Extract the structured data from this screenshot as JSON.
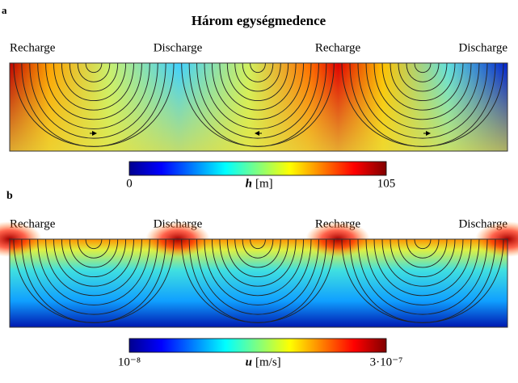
{
  "title": "Három egységmedence",
  "panels": [
    {
      "label": "a",
      "zones": [
        "Recharge",
        "Discharge",
        "Recharge",
        "Discharge"
      ],
      "colorbar": {
        "min": "0",
        "max": "105",
        "symbol": "h",
        "unit": "[m]"
      }
    },
    {
      "label": "b",
      "zones": [
        "Recharge",
        "Discharge",
        "Recharge",
        "Discharge"
      ],
      "colorbar": {
        "min": "10⁻⁸",
        "max": "3·10⁻⁷",
        "symbol": "u",
        "unit": "[m/s]"
      }
    }
  ]
}
